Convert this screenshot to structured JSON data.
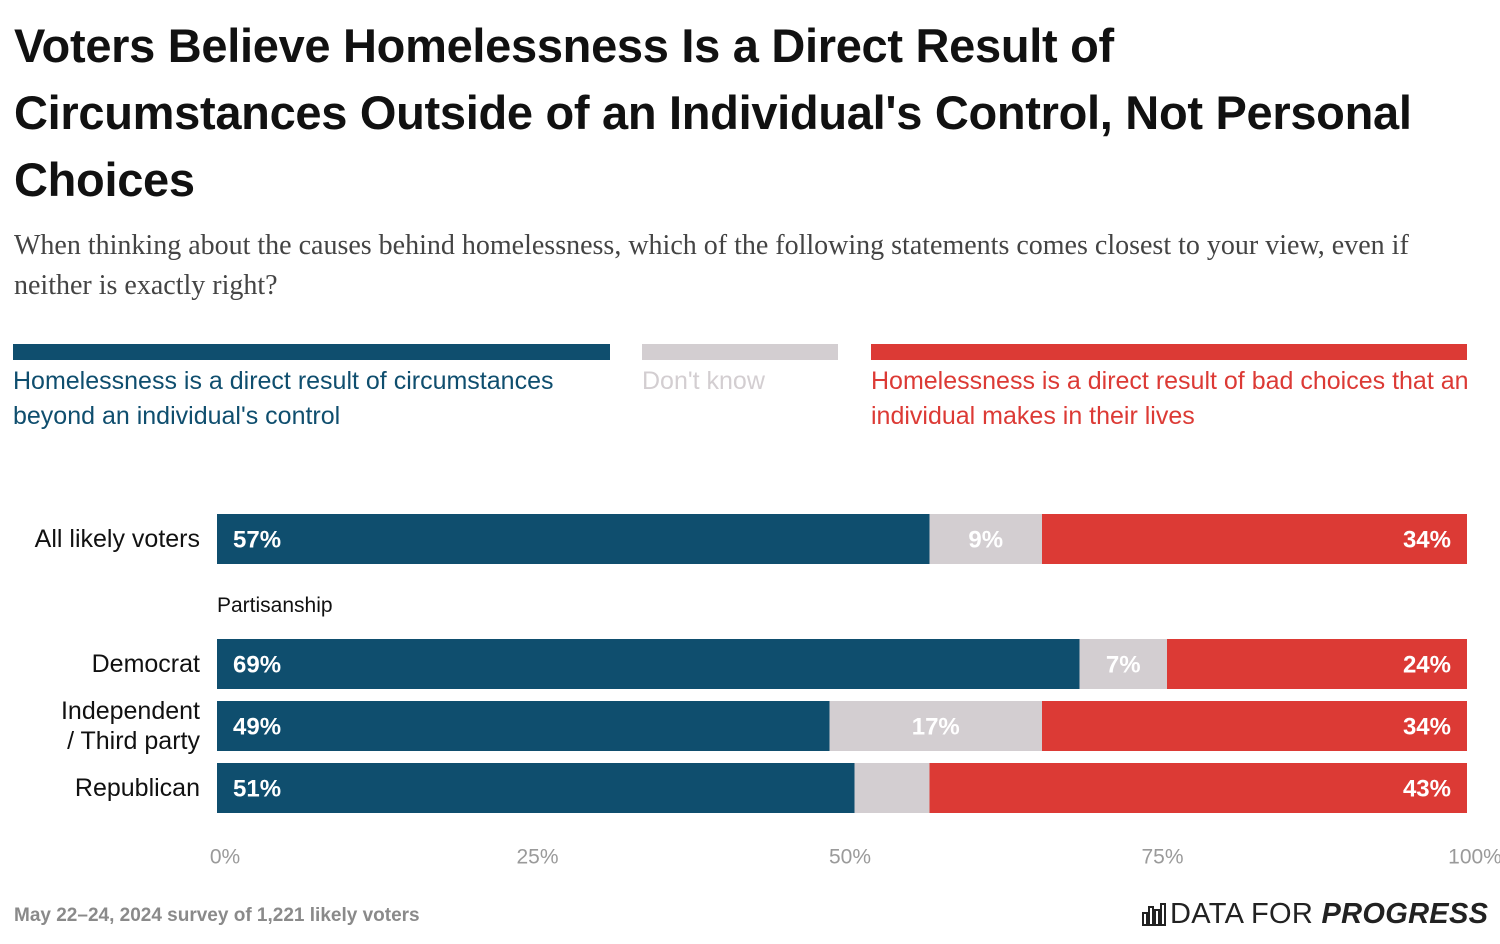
{
  "chart_data": {
    "type": "stacked_bar_horizontal",
    "title": "Voters Believe Homelessness Is a Direct Result of Circumstances Outside of an Individual's Control, Not Personal Choices",
    "subtitle": "When thinking about the causes behind homelessness, which of the following statements comes closest to your view, even if neither is exactly right?",
    "categories": [
      "All likely voters",
      "Democrat",
      "Independent / Third party",
      "Republican"
    ],
    "group_label": "Partisanship",
    "series": [
      {
        "name": "Homelessness is a direct result of circumstances beyond an individual's control",
        "color": "#0f4e6e",
        "values": [
          57,
          69,
          49,
          51
        ],
        "value_labels": [
          "57%",
          "69%",
          "49%",
          "51%"
        ]
      },
      {
        "name": "Don't know",
        "color": "#d3ced1",
        "values": [
          9,
          7,
          17,
          6
        ],
        "value_labels": [
          "9%",
          "7%",
          "17%",
          null
        ]
      },
      {
        "name": "Homelessness is a direct result of bad choices that an individual makes in their lives",
        "color": "#dc3a35",
        "values": [
          34,
          24,
          34,
          43
        ],
        "value_labels": [
          "34%",
          "24%",
          "34%",
          "43%"
        ]
      }
    ],
    "xlim": [
      0,
      100
    ],
    "xticks": [
      {
        "value": 0,
        "label": "0%"
      },
      {
        "value": 25,
        "label": "25%"
      },
      {
        "value": 50,
        "label": "50%"
      },
      {
        "value": 75,
        "label": "75%"
      },
      {
        "value": 100,
        "label": "100%"
      }
    ],
    "grid": false,
    "source": "May 22–24, 2024 survey of 1,221 likely voters",
    "brand": {
      "prefix": "DATA FOR",
      "emphasis": "PROGRESS"
    }
  }
}
